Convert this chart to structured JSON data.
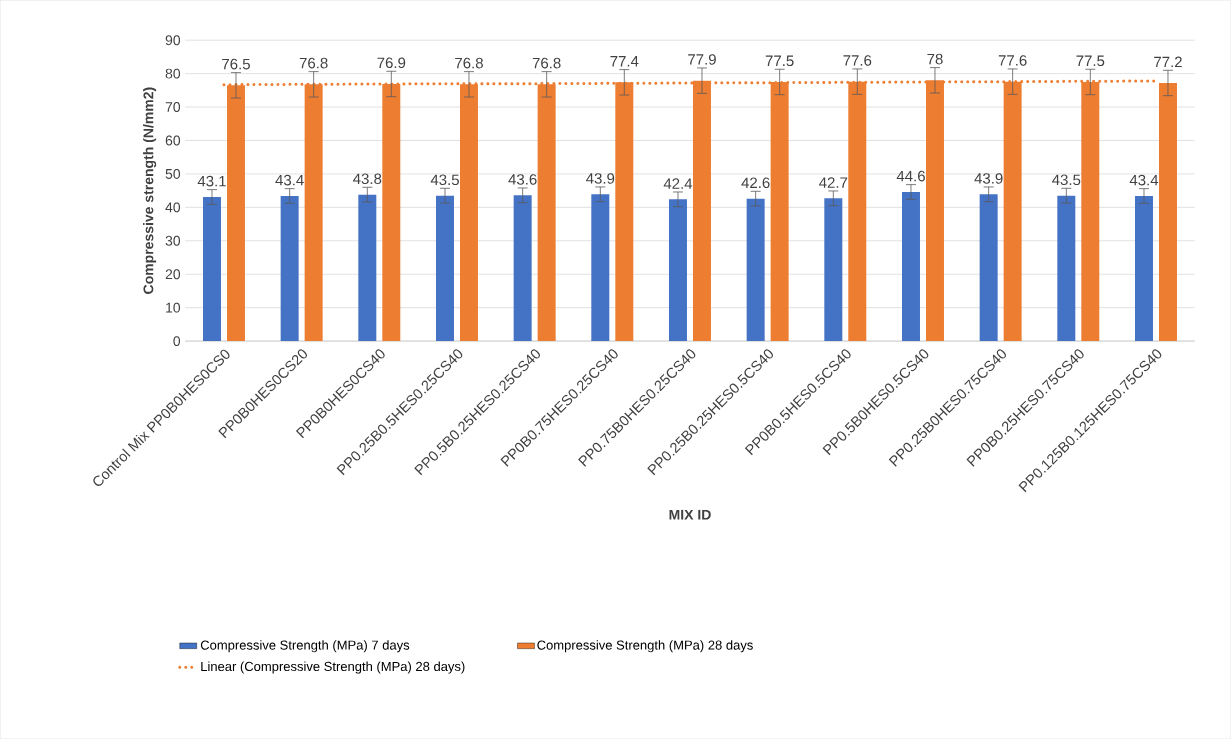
{
  "chart_data": {
    "type": "bar",
    "xlabel": "MIX ID",
    "ylabel": "Compressive strength (N/mm2)",
    "categories": [
      "Control Mix PP0B0HES0CS0",
      "PP0B0HES0CS20",
      "PP0B0HES0CS40",
      "PP0.25B0.5HES0.25CS40",
      "PP0.5B0.25HES0.25CS40",
      "PP0B0.75HES0.25CS40",
      "PP0.75B0HES0.25CS40",
      "PP0.25B0.25HES0.5CS40",
      "PP0B0.5HES0.5CS40",
      "PP0.5B0HES0.5CS40",
      "PP0.25B0HES0.75CS40",
      "PP0B0.25HES0.75CS40",
      "PP0.125B0.125HES0.75CS40"
    ],
    "series": [
      {
        "name": "Compressive Strength (MPa) 7 days",
        "color": "#4472c4",
        "values": [
          43.1,
          43.4,
          43.8,
          43.5,
          43.6,
          43.9,
          42.4,
          42.6,
          42.7,
          44.6,
          43.9,
          43.5,
          43.4
        ],
        "value_labels": [
          "43.1",
          "43.4",
          "43.8",
          "43.5",
          "43.6",
          "43.9",
          "42.4",
          "42.6",
          "42.7",
          "44.6",
          "43.9",
          "43.5",
          "43.4"
        ],
        "errors": [
          2.2,
          2.2,
          2.2,
          2.2,
          2.2,
          2.2,
          2.2,
          2.2,
          2.2,
          2.2,
          2.2,
          2.2,
          2.2
        ]
      },
      {
        "name": "Compressive Strength (MPa) 28 days",
        "color": "#ed7d31",
        "values": [
          76.5,
          76.8,
          76.9,
          76.8,
          76.8,
          77.4,
          77.9,
          77.5,
          77.6,
          78,
          77.6,
          77.5,
          77.2
        ],
        "value_labels": [
          "76.5",
          "76.8",
          "76.9",
          "76.8",
          "76.8",
          "77.4",
          "77.9",
          "77.5",
          "77.6",
          "78",
          "77.6",
          "77.5",
          "77.2"
        ],
        "errors": [
          3.8,
          3.8,
          3.8,
          3.8,
          3.8,
          3.8,
          3.8,
          3.8,
          3.8,
          3.8,
          3.8,
          3.8,
          3.8
        ]
      },
      {
        "name": "Linear (Compressive Strength (MPa) 28 days)",
        "type": "line",
        "color": "#ed7d31",
        "line_style": "dotted",
        "marker": "none",
        "values": [
          76.7,
          76.8,
          76.9,
          77.0,
          77.0,
          77.1,
          77.2,
          77.3,
          77.4,
          77.5,
          77.6,
          77.7,
          77.8
        ]
      }
    ],
    "ylim": [
      0,
      90
    ],
    "yticks": [
      0,
      10,
      20,
      30,
      40,
      50,
      60,
      70,
      80,
      90
    ],
    "grid": "y",
    "legend": "bottom"
  }
}
